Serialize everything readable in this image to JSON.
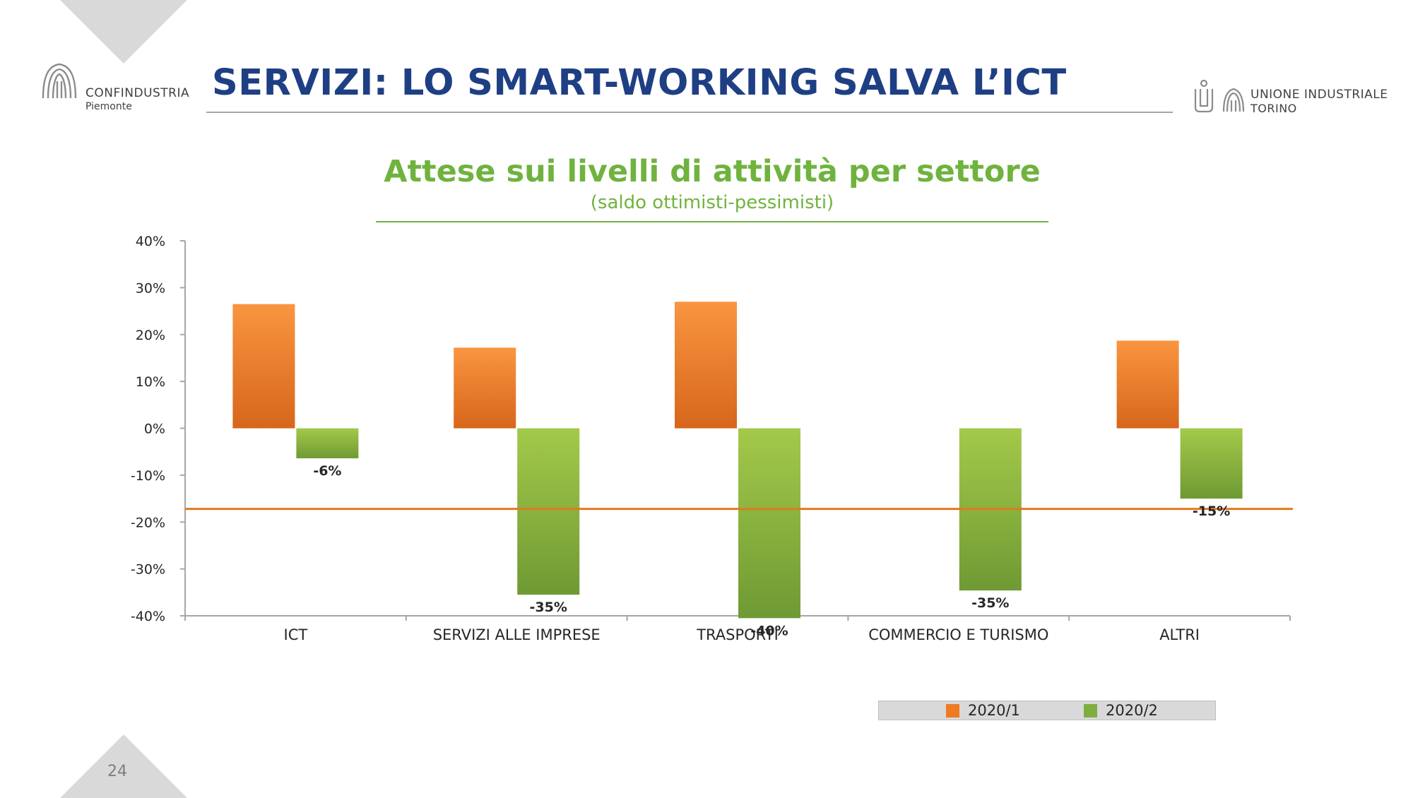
{
  "page": {
    "title": "SERVIZI: LO SMART-WORKING SALVA L’ICT",
    "page_number": "24"
  },
  "logos": {
    "left": {
      "name": "CONFINDUSTRIA",
      "sub": "Piemonte"
    },
    "right": {
      "line1": "UNIONE INDUSTRIALE",
      "line2": "TORINO"
    }
  },
  "colors": {
    "title": "#1f3f84",
    "chart_title": "#6fb33e",
    "series_1": "#f07a23",
    "series_2": "#7fae3f",
    "reference_line": "#e07a1f"
  },
  "chart_data": {
    "type": "bar",
    "title": "Attese sui livelli di attività per settore",
    "subtitle": "(saldo ottimisti-pessimisti)",
    "categories": [
      "ICT",
      "SERVIZI ALLE IMPRESE",
      "TRASPORTI",
      "COMMERCIO E TURISMO",
      "ALTRI"
    ],
    "series": [
      {
        "name": "2020/1",
        "values": [
          26.5,
          17.2,
          27.0,
          null,
          18.7
        ],
        "labels": [
          "",
          "",
          "",
          "",
          ""
        ]
      },
      {
        "name": "2020/2",
        "values": [
          -6.4,
          -35.5,
          -40.5,
          -34.6,
          -15.0
        ],
        "labels": [
          "-6%",
          "-35%",
          "-40%",
          "-35%",
          "-15%"
        ]
      }
    ],
    "reference_line": {
      "value": -17.2
    },
    "ylim": [
      -40,
      40
    ],
    "yticks": [
      40,
      30,
      20,
      10,
      0,
      -10,
      -20,
      -30,
      -40
    ],
    "ytick_labels": [
      "40%",
      "30%",
      "20%",
      "10%",
      "0%",
      "-10%",
      "-20%",
      "-30%",
      "-40%"
    ],
    "legend_position": "bottom-right",
    "grid": false
  }
}
